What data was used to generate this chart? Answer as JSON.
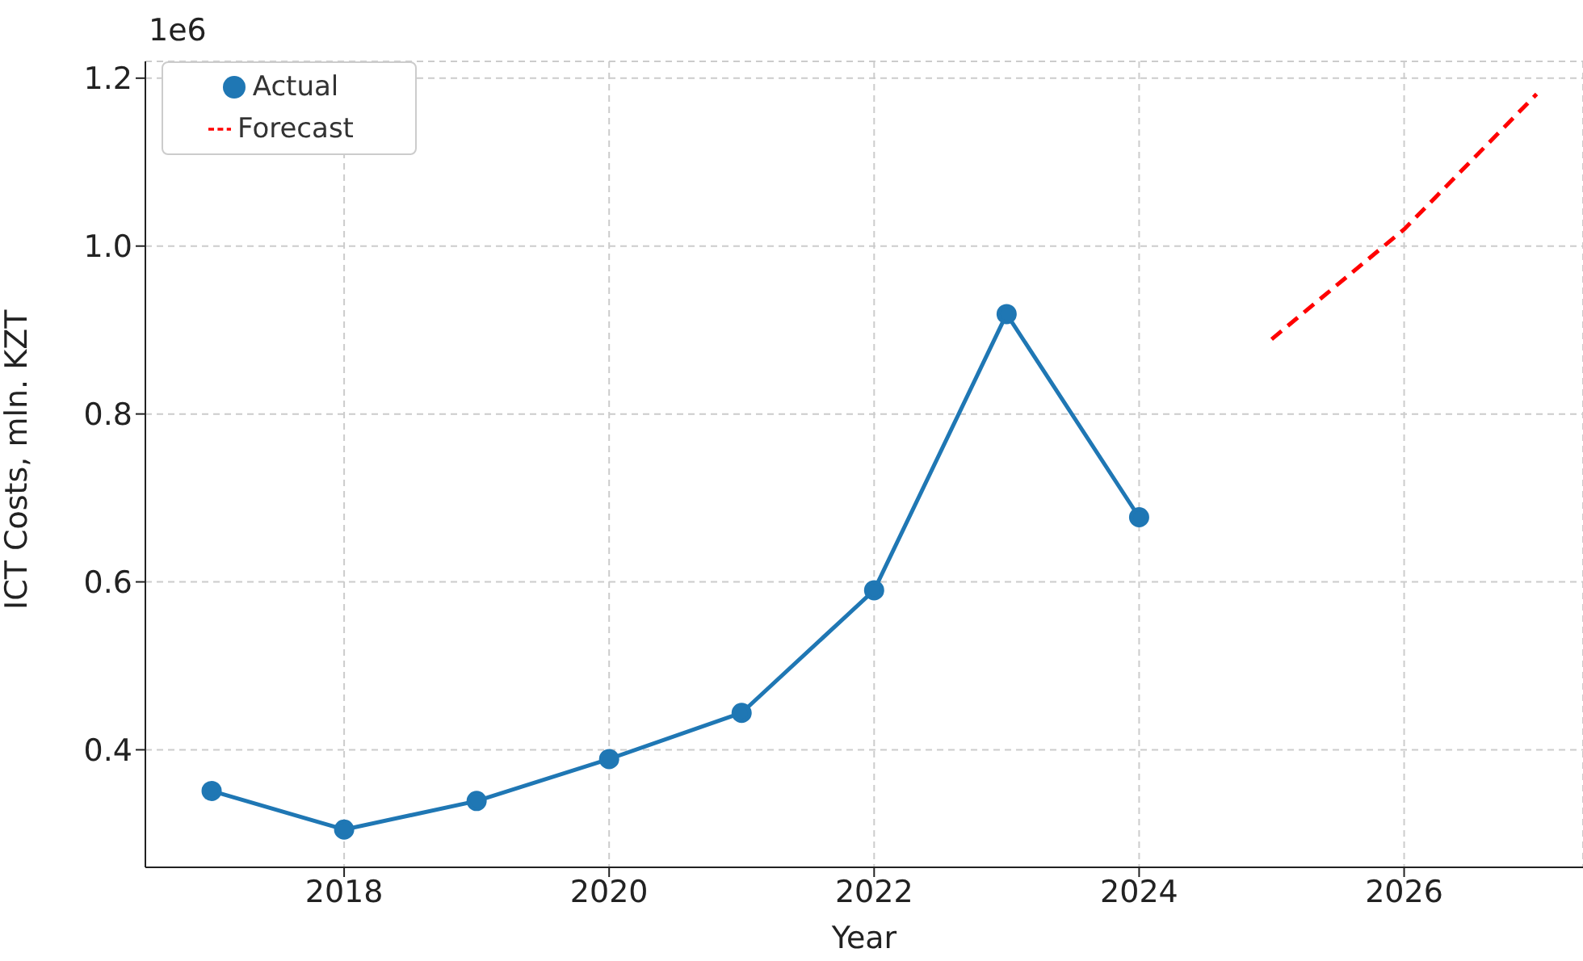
{
  "chart_data": {
    "type": "line",
    "xlabel": "Year",
    "ylabel": "ICT Costs, mln. KZT",
    "annotations": [
      "1e6"
    ],
    "x": [
      2017,
      2018,
      2019,
      2020,
      2021,
      2022,
      2023,
      2024
    ],
    "series": [
      {
        "name": "Actual",
        "color": "#1f77b4",
        "values": [
          0.351,
          0.305,
          0.339,
          0.389,
          0.444,
          0.59,
          0.919,
          0.677
        ],
        "marker": "circle",
        "line_style": "solid"
      },
      {
        "name": "Forecast",
        "color": "#ff0000",
        "x": [
          2025,
          2026,
          2027
        ],
        "values": [
          0.889,
          1.02,
          1.181
        ],
        "marker": "none",
        "line_style": "dashed"
      }
    ],
    "xlim": [
      2016.5,
      2027.35
    ],
    "xticks": [
      2018,
      2020,
      2022,
      2024,
      2026
    ],
    "ylim": [
      0.26,
      1.22
    ],
    "yticks": [
      {
        "value": 0.4,
        "label": "0.4"
      },
      {
        "value": 0.6,
        "label": "0.6"
      },
      {
        "value": 0.8,
        "label": "0.8"
      },
      {
        "value": 1.0,
        "label": "1.0"
      },
      {
        "value": 1.2,
        "label": "1.2"
      }
    ],
    "grid": true,
    "legend": "top left"
  }
}
